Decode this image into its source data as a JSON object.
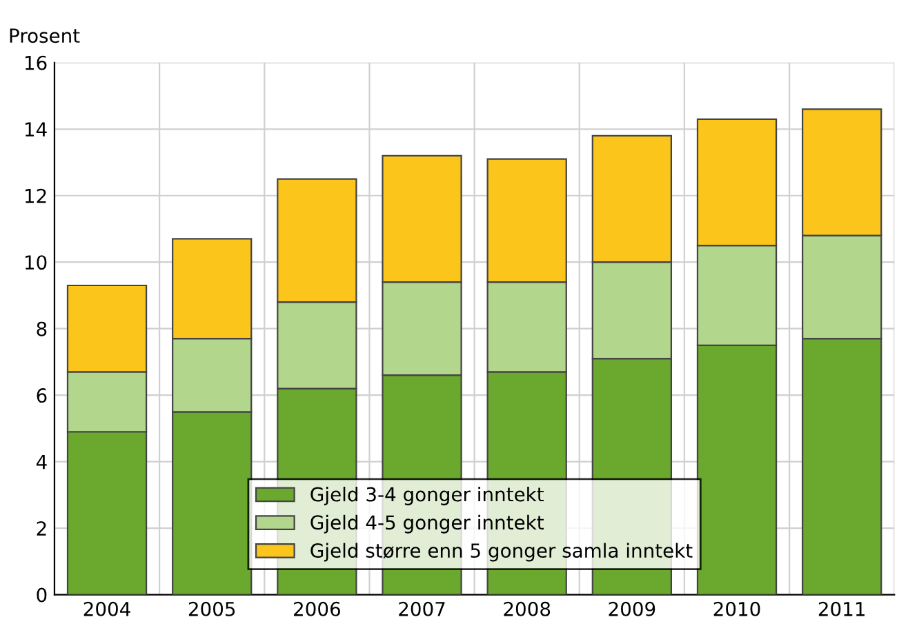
{
  "chart_data": {
    "type": "bar",
    "stacked": true,
    "ylabel": "Prosent",
    "categories": [
      "2004",
      "2005",
      "2006",
      "2007",
      "2008",
      "2009",
      "2010",
      "2011"
    ],
    "series": [
      {
        "name": "Gjeld 3-4 gonger inntekt",
        "color": "#6aa82e",
        "values": [
          4.9,
          5.5,
          6.2,
          6.6,
          6.7,
          7.1,
          7.5,
          7.7
        ]
      },
      {
        "name": "Gjeld 4-5 gonger inntekt",
        "color": "#b3d68d",
        "values": [
          1.8,
          2.2,
          2.6,
          2.8,
          2.7,
          2.9,
          3.0,
          3.1
        ]
      },
      {
        "name": "Gjeld større enn 5 gonger samla inntekt",
        "color": "#fbc51b",
        "values": [
          2.6,
          3.0,
          3.7,
          3.8,
          3.7,
          3.8,
          3.8,
          3.8
        ]
      }
    ],
    "ylim": [
      0,
      16
    ],
    "yticks": [
      0,
      2,
      4,
      6,
      8,
      10,
      12,
      14,
      16
    ],
    "grid": true,
    "legend": "bottom"
  }
}
